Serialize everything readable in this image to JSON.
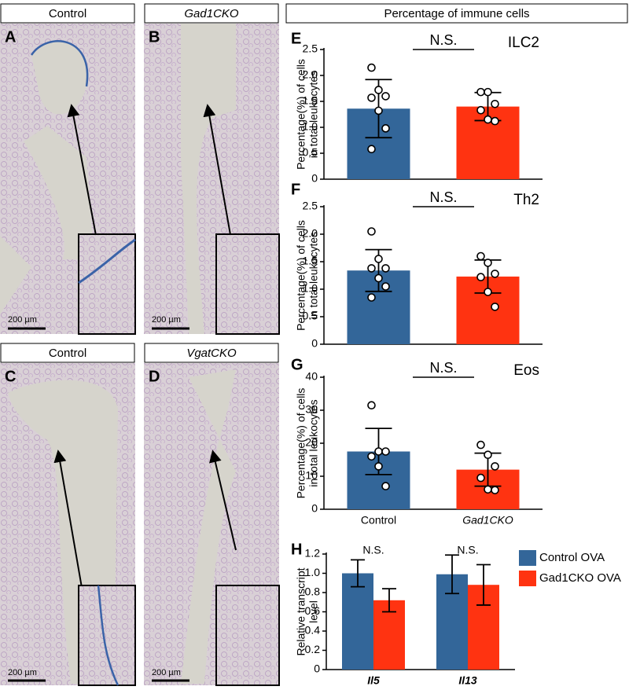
{
  "panels": [
    {
      "letter": "A",
      "label": "Control",
      "scale": "200 µm"
    },
    {
      "letter": "B",
      "label": "Gad1CKO",
      "scale": "200 µm"
    },
    {
      "letter": "C",
      "label": "Control",
      "scale": "200 µm"
    },
    {
      "letter": "D",
      "label": "VgatCKO",
      "scale": "200 µm"
    }
  ],
  "header": "Percentage of immune cells",
  "chart_data": [
    {
      "type": "bar",
      "letter": "E",
      "title": "ILC2",
      "annotation": "N.S.",
      "ylabel": [
        "Percentage(%) of cells",
        "in total leukocytes"
      ],
      "categories": [
        null,
        null
      ],
      "colors": [
        "#336699",
        "#ff3311"
      ],
      "values": [
        1.36,
        1.4
      ],
      "errors": [
        0.56,
        0.27
      ],
      "points": [
        [
          2.15,
          1.72,
          1.6,
          1.57,
          1.32,
          0.98,
          0.58
        ],
        [
          1.68,
          1.68,
          1.45,
          1.33,
          1.15,
          1.12
        ]
      ],
      "ylim": [
        0,
        2.5
      ],
      "yticks": [
        0,
        0.5,
        {
          "value": 1,
          "label": "1.0"
        },
        1.5,
        {
          "value": 2,
          "label": "2.0"
        },
        2.5
      ]
    },
    {
      "type": "bar",
      "letter": "F",
      "title": "Th2",
      "annotation": "N.S.",
      "ylabel": [
        "Percentage(%) of cells",
        "in total leukocytes"
      ],
      "categories": [
        null,
        null
      ],
      "colors": [
        "#336699",
        "#ff3311"
      ],
      "values": [
        1.34,
        1.23
      ],
      "errors": [
        0.38,
        0.3
      ],
      "points": [
        [
          2.05,
          1.55,
          1.38,
          1.38,
          1.2,
          1.05,
          0.85
        ],
        [
          1.6,
          1.48,
          1.28,
          1.22,
          0.95,
          0.68
        ]
      ],
      "ylim": [
        0,
        2.5
      ],
      "yticks": [
        0,
        0.5,
        {
          "value": 1,
          "label": "1.0"
        },
        1.5,
        {
          "value": 2,
          "label": "2.0"
        },
        2.5
      ]
    },
    {
      "type": "bar",
      "letter": "G",
      "title": "Eos",
      "annotation": "N.S.",
      "ylabel": [
        "Percentage(%) of cells",
        "in total leukocytes"
      ],
      "categories": [
        "Control",
        "Gad1CKO"
      ],
      "colors": [
        "#336699",
        "#ff3311"
      ],
      "values": [
        17.5,
        12
      ],
      "errors": [
        7,
        5
      ],
      "points": [
        [
          31.5,
          17.5,
          17.5,
          16,
          13,
          7
        ],
        [
          19.5,
          16.5,
          13,
          9.5,
          6,
          5.8
        ]
      ],
      "ylim": [
        0,
        40
      ],
      "yticks": [
        0,
        10,
        20,
        30,
        40
      ]
    },
    {
      "type": "grouped",
      "letter": "H",
      "annotations": [
        "N.S.",
        "N.S."
      ],
      "ylabel": [
        "Relative transcript",
        "level"
      ],
      "categories": [
        "Il5",
        "Il13"
      ],
      "series": [
        {
          "name": "Control OVA",
          "color": "#336699",
          "values": [
            1,
            0.99
          ],
          "errors": [
            0.14,
            0.2
          ]
        },
        {
          "name": "Gad1CKO OVA",
          "color": "#ff3311",
          "values": [
            0.72,
            0.88
          ],
          "errors": [
            0.12,
            0.21
          ]
        }
      ],
      "ylim": [
        0,
        1.2
      ],
      "yticks": [
        0,
        0.2,
        0.4,
        0.6,
        0.8,
        {
          "value": 1,
          "label": "1.0"
        },
        1.2
      ]
    }
  ]
}
